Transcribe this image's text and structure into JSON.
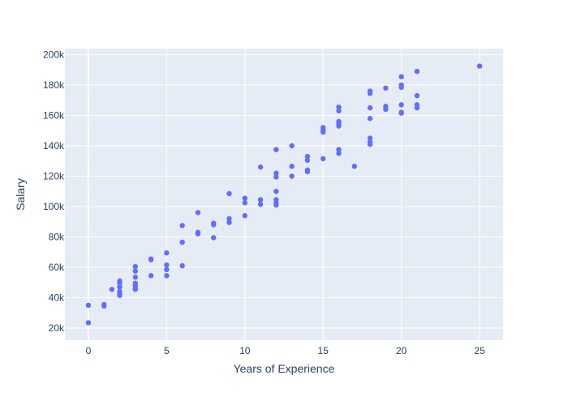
{
  "colors": {
    "background": "#ffffff",
    "plot_background": "#e5ecf6",
    "grid": "#ffffff",
    "marker": "#636efa",
    "text": "#2a3f5f"
  },
  "chart_data": {
    "type": "scatter",
    "xlabel": "Years of Experience",
    "ylabel": "Salary",
    "xlim": [
      -1.5,
      26.5
    ],
    "ylim": [
      12000,
      204000
    ],
    "grid": true,
    "x_ticks": [
      0,
      5,
      10,
      15,
      20,
      25
    ],
    "x_tick_labels": [
      "0",
      "5",
      "10",
      "15",
      "20",
      "25"
    ],
    "y_ticks": [
      20000,
      40000,
      60000,
      80000,
      100000,
      120000,
      140000,
      160000,
      180000,
      200000
    ],
    "y_tick_labels": [
      "20k",
      "40k",
      "60k",
      "80k",
      "100k",
      "120k",
      "140k",
      "160k",
      "180k",
      "200k"
    ],
    "series": [
      {
        "marker_color": "#636efa",
        "points": [
          [
            0,
            35000
          ],
          [
            0,
            23500
          ],
          [
            1,
            35500
          ],
          [
            1,
            34500
          ],
          [
            1.5,
            45500
          ],
          [
            2,
            51000
          ],
          [
            2,
            49500
          ],
          [
            2,
            47000
          ],
          [
            2,
            44000
          ],
          [
            2,
            42500
          ],
          [
            2,
            41500
          ],
          [
            3,
            60500
          ],
          [
            3,
            57500
          ],
          [
            3,
            53500
          ],
          [
            3,
            49500
          ],
          [
            3,
            48000
          ],
          [
            3,
            46500
          ],
          [
            3,
            45500
          ],
          [
            4,
            65500
          ],
          [
            4,
            65000
          ],
          [
            4,
            54500
          ],
          [
            5,
            69500
          ],
          [
            5,
            61500
          ],
          [
            5,
            58500
          ],
          [
            5,
            54500
          ],
          [
            6,
            87500
          ],
          [
            6,
            76500
          ],
          [
            6,
            61000
          ],
          [
            7,
            96000
          ],
          [
            7,
            83000
          ],
          [
            7,
            82000
          ],
          [
            8,
            89000
          ],
          [
            8,
            88000
          ],
          [
            8,
            79500
          ],
          [
            9,
            108500
          ],
          [
            9,
            92000
          ],
          [
            9,
            89500
          ],
          [
            10,
            105500
          ],
          [
            10,
            102500
          ],
          [
            10,
            94000
          ],
          [
            11,
            126000
          ],
          [
            11,
            104500
          ],
          [
            11,
            101500
          ],
          [
            12,
            137500
          ],
          [
            12,
            122000
          ],
          [
            12,
            119500
          ],
          [
            12,
            110000
          ],
          [
            12,
            104500
          ],
          [
            12,
            102500
          ],
          [
            12,
            101000
          ],
          [
            13,
            140000
          ],
          [
            13,
            126500
          ],
          [
            13,
            120000
          ],
          [
            14,
            133000
          ],
          [
            14,
            130500
          ],
          [
            14,
            124000
          ],
          [
            14,
            123000
          ],
          [
            15,
            152000
          ],
          [
            15,
            150500
          ],
          [
            15,
            149000
          ],
          [
            15,
            131500
          ],
          [
            16,
            165500
          ],
          [
            16,
            163000
          ],
          [
            16,
            156000
          ],
          [
            16,
            154500
          ],
          [
            16,
            153000
          ],
          [
            16,
            137500
          ],
          [
            16,
            135000
          ],
          [
            17,
            126500
          ],
          [
            18,
            176000
          ],
          [
            18,
            174500
          ],
          [
            18,
            165000
          ],
          [
            18,
            158000
          ],
          [
            18,
            145000
          ],
          [
            18,
            142500
          ],
          [
            18,
            141000
          ],
          [
            19,
            178000
          ],
          [
            19,
            166000
          ],
          [
            19,
            164000
          ],
          [
            20,
            185500
          ],
          [
            20,
            180000
          ],
          [
            20,
            178500
          ],
          [
            20,
            167000
          ],
          [
            20,
            162000
          ],
          [
            20,
            161500
          ],
          [
            21,
            189000
          ],
          [
            21,
            173000
          ],
          [
            21,
            167000
          ],
          [
            21,
            165000
          ],
          [
            25,
            192500
          ]
        ]
      }
    ]
  }
}
